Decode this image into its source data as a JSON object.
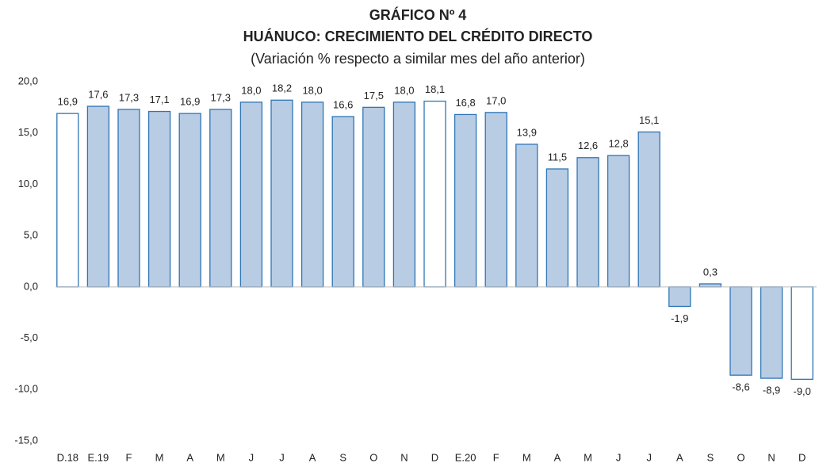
{
  "chart_data": {
    "type": "bar",
    "title": "GRÁFICO Nº 4",
    "subtitle": "HUÁNUCO: CRECIMIENTO DEL CRÉDITO DIRECTO",
    "note": "(Variación % respecto a similar mes del año anterior)",
    "categories": [
      "D.18",
      "E.19",
      "F",
      "M",
      "A",
      "M",
      "J",
      "J",
      "A",
      "S",
      "O",
      "N",
      "D",
      "E.20",
      "F",
      "M",
      "A",
      "M",
      "J",
      "J",
      "A",
      "S",
      "O",
      "N",
      "D"
    ],
    "values": [
      16.9,
      17.6,
      17.3,
      17.1,
      16.9,
      17.3,
      18.0,
      18.2,
      18.0,
      16.6,
      17.5,
      18.0,
      18.1,
      16.8,
      17.0,
      13.9,
      11.5,
      12.6,
      12.8,
      15.1,
      -1.9,
      0.3,
      -8.6,
      -8.9,
      -9.0
    ],
    "value_labels": [
      "16,9",
      "17,6",
      "17,3",
      "17,1",
      "16,9",
      "17,3",
      "18,0",
      "18,2",
      "18,0",
      "16,6",
      "17,5",
      "18,0",
      "18,1",
      "16,8",
      "17,0",
      "13,9",
      "11,5",
      "12,6",
      "12,8",
      "15,1",
      "-1,9",
      "0,3",
      "-8,6",
      "-8,9",
      "-9,0"
    ],
    "colors": [
      "#ffffff",
      "#b8cce4",
      "#b8cce4",
      "#b8cce4",
      "#b8cce4",
      "#b8cce4",
      "#b8cce4",
      "#b8cce4",
      "#b8cce4",
      "#b8cce4",
      "#b8cce4",
      "#b8cce4",
      "#ffffff",
      "#b8cce4",
      "#b8cce4",
      "#b8cce4",
      "#b8cce4",
      "#b8cce4",
      "#b8cce4",
      "#b8cce4",
      "#b8cce4",
      "#b8cce4",
      "#b8cce4",
      "#b8cce4",
      "#ffffff"
    ],
    "edge_color": "#2e75b6",
    "ylim": [
      -15,
      20
    ],
    "yticks": [
      {
        "value": -15,
        "label": "-15,0"
      },
      {
        "value": -10,
        "label": "-10,0"
      },
      {
        "value": -5,
        "label": "-5,0"
      },
      {
        "value": 0,
        "label": "0,0"
      },
      {
        "value": 5,
        "label": "5,0"
      },
      {
        "value": 10,
        "label": "10,0"
      },
      {
        "value": 15,
        "label": "15,0"
      },
      {
        "value": 20,
        "label": "20,0"
      }
    ],
    "grid": false
  }
}
